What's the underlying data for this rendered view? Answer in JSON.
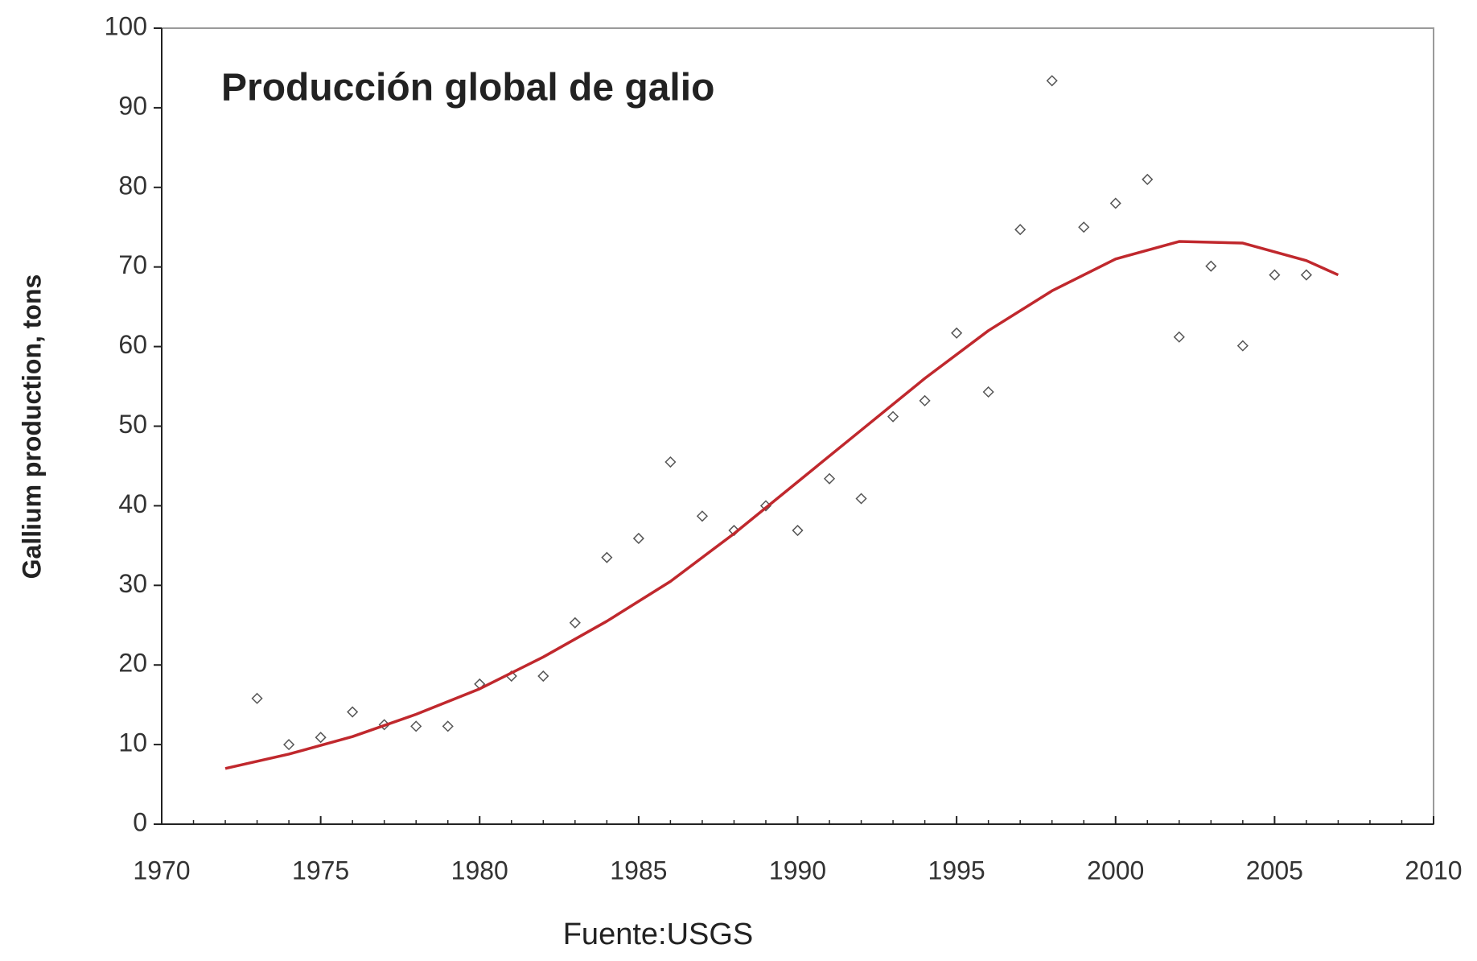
{
  "chart_data": {
    "type": "scatter",
    "title": "Producción global de galio",
    "y_label": "Gallium production, tons",
    "caption": "Fuente:USGS",
    "xlim": [
      1970,
      2010
    ],
    "xticks": [
      1970,
      1975,
      1980,
      1985,
      1990,
      1995,
      2000,
      2005,
      2010
    ],
    "xminorticks": [
      1970,
      1971,
      1972,
      1973,
      1974,
      1975,
      1976,
      1977,
      1978,
      1979,
      1980,
      1981,
      1982,
      1983,
      1984,
      1985,
      1986,
      1987,
      1988,
      1989,
      1990,
      1991,
      1992,
      1993,
      1994,
      1995,
      1996,
      1997,
      1998,
      1999,
      2000,
      2001,
      2002,
      2003,
      2004,
      2005,
      2006,
      2007,
      2008,
      2009,
      2010
    ],
    "ylim": [
      0,
      100
    ],
    "yticks": [
      0,
      10,
      20,
      30,
      40,
      50,
      60,
      70,
      80,
      90,
      100
    ],
    "series": [
      {
        "mode": "markers",
        "color": "#555555",
        "x": [
          1973,
          1974,
          1975,
          1976,
          1977,
          1978,
          1979,
          1980,
          1981,
          1982,
          1983,
          1984,
          1985,
          1986,
          1987,
          1988,
          1989,
          1990,
          1991,
          1992,
          1993,
          1994,
          1995,
          1996,
          1997,
          1998,
          1999,
          2000,
          2001,
          2002,
          2003,
          2004,
          2005,
          2006
        ],
        "values": [
          15.8,
          10.0,
          10.9,
          14.1,
          12.5,
          12.3,
          12.3,
          17.6,
          18.6,
          18.6,
          25.3,
          33.5,
          35.9,
          45.5,
          38.7,
          36.9,
          40.0,
          36.9,
          43.4,
          40.9,
          51.2,
          53.2,
          61.7,
          54.3,
          74.7,
          93.4,
          75.0,
          78.0,
          81.0,
          61.2,
          70.1,
          60.1,
          69.0,
          69.0
        ]
      },
      {
        "mode": "line",
        "color": "#c0282d",
        "x": [
          1972,
          1974,
          1976,
          1978,
          1980,
          1982,
          1984,
          1986,
          1988,
          1990,
          1992,
          1994,
          1996,
          1998,
          2000,
          2002,
          2004,
          2006,
          2007
        ],
        "values": [
          7,
          8.8,
          11,
          13.8,
          17,
          21,
          25.5,
          30.5,
          36.5,
          43,
          49.5,
          56,
          62,
          67,
          71,
          73.2,
          73,
          70.8,
          69
        ]
      }
    ]
  }
}
